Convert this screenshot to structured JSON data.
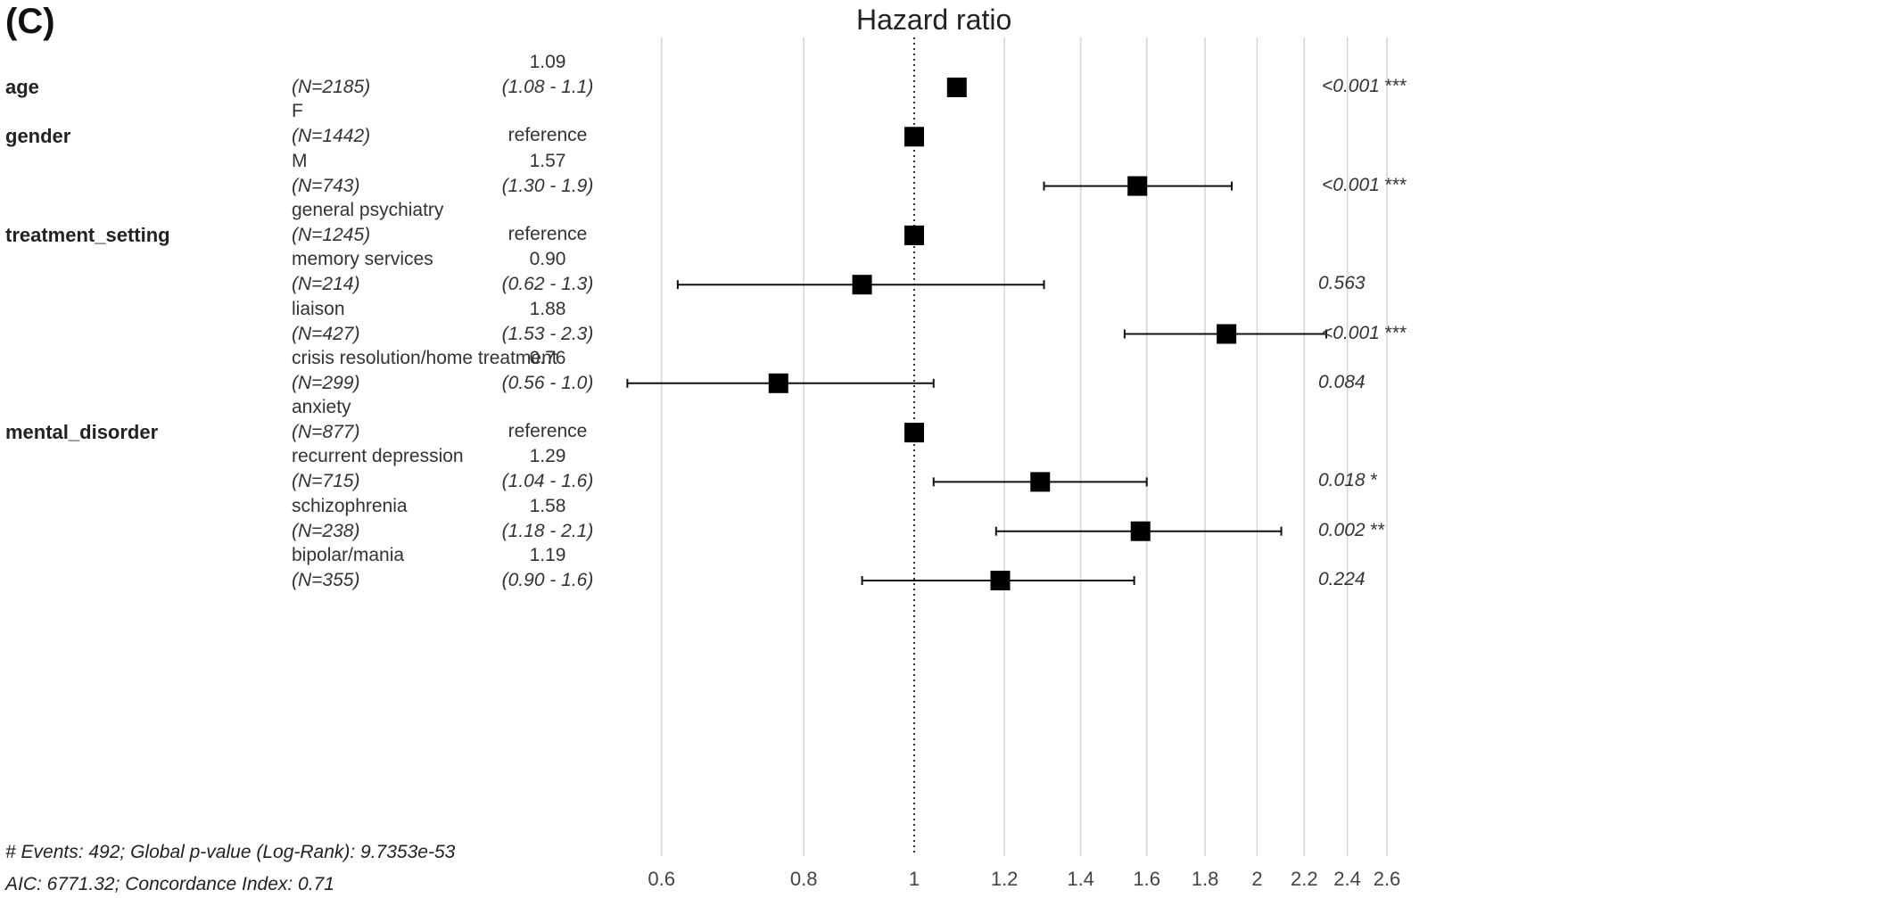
{
  "panel_label": "(C)",
  "chart_data": {
    "type": "forest",
    "title": "Hazard ratio",
    "x_scale": "log",
    "xlim": [
      0.55,
      2.65
    ],
    "x_ticks": [
      "0.6",
      "0.8",
      "1",
      "1.2",
      "1.4",
      "1.6",
      "1.8",
      "2",
      "2.2",
      "2.4",
      "2.6"
    ],
    "reference_line": 1,
    "grid": true,
    "rows": [
      {
        "variable": "age",
        "level": "",
        "n": "(N=2185)",
        "hr": 1.09,
        "hr_text": "1.09",
        "ci": [
          1.08,
          1.1
        ],
        "ci_text": "(1.08 - 1.1)",
        "p": "<0.001",
        "stars": "***"
      },
      {
        "variable": "gender",
        "level": "F",
        "n": "(N=1442)",
        "hr": 1,
        "hr_text": "reference",
        "ci": null,
        "ci_text": "",
        "p": "",
        "stars": ""
      },
      {
        "variable": "",
        "level": "M",
        "n": "(N=743)",
        "hr": 1.57,
        "hr_text": "1.57",
        "ci": [
          1.3,
          1.9
        ],
        "ci_text": "(1.30 - 1.9)",
        "p": "<0.001",
        "stars": "***"
      },
      {
        "variable": "treatment_setting",
        "level": "general psychiatry",
        "n": "(N=1245)",
        "hr": 1,
        "hr_text": "reference",
        "ci": null,
        "ci_text": "",
        "p": "",
        "stars": ""
      },
      {
        "variable": "",
        "level": "memory services",
        "n": "(N=214)",
        "hr": 0.9,
        "hr_text": "0.90",
        "ci": [
          0.62,
          1.3
        ],
        "ci_text": "(0.62 - 1.3)",
        "p": "0.563",
        "stars": ""
      },
      {
        "variable": "",
        "level": "liaison",
        "n": "(N=427)",
        "hr": 1.88,
        "hr_text": "1.88",
        "ci": [
          1.53,
          2.3
        ],
        "ci_text": "(1.53 - 2.3)",
        "p": "<0.001",
        "stars": "***"
      },
      {
        "variable": "",
        "level": "crisis resolution/home treatment",
        "n": "(N=299)",
        "hr": 0.76,
        "hr_text": "0.76",
        "ci": [
          0.56,
          1.04
        ],
        "ci_text": "(0.56 - 1.0)",
        "p": "0.084",
        "stars": ""
      },
      {
        "variable": "mental_disorder",
        "level": "anxiety",
        "n": "(N=877)",
        "hr": 1,
        "hr_text": "reference",
        "ci": null,
        "ci_text": "",
        "p": "",
        "stars": ""
      },
      {
        "variable": "",
        "level": "recurrent depression",
        "n": "(N=715)",
        "hr": 1.29,
        "hr_text": "1.29",
        "ci": [
          1.04,
          1.6
        ],
        "ci_text": "(1.04 - 1.6)",
        "p": "0.018",
        "stars": "*"
      },
      {
        "variable": "",
        "level": "schizophrenia",
        "n": "(N=238)",
        "hr": 1.58,
        "hr_text": "1.58",
        "ci": [
          1.18,
          2.1
        ],
        "ci_text": "(1.18 - 2.1)",
        "p": "0.002",
        "stars": "**"
      },
      {
        "variable": "",
        "level": "bipolar/mania",
        "n": "(N=355)",
        "hr": 1.19,
        "hr_text": "1.19",
        "ci": [
          0.9,
          1.56
        ],
        "ci_text": "(0.90 - 1.6)",
        "p": "0.224",
        "stars": ""
      }
    ],
    "footer": [
      "# Events: 492; Global p-value (Log-Rank): 9.7353e-53",
      "AIC: 6771.32; Concordance Index: 0.71"
    ]
  }
}
